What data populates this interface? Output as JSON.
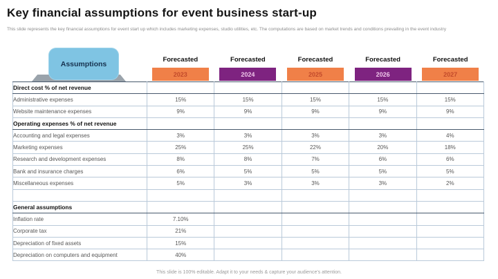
{
  "slide": {
    "title": "Key financial assumptions for event business start-up",
    "subtitle": "This slide represents the key financial assumptions for event start up which includes marketing expenses, studio utilities, etc. The computations are based on market trends and conditions prevailing in the event industry",
    "footer": "This slide is 100% editable. Adapt it to your needs & capture your audience's attention."
  },
  "colors": {
    "orange": "#F08048",
    "purple": "#7E2380",
    "assumptions_tab_blue": "#7FC4E3",
    "year_text_on_orange": "#C24A2B",
    "year_text_on_purple": "#EFC6E9",
    "table_border": "#B9C9D9",
    "section_border": "#46576B"
  },
  "header": {
    "assumptions_label": "Assumptions",
    "forecasted_label": "Forecasted",
    "years": [
      {
        "year": "2023",
        "color": "orange"
      },
      {
        "year": "2024",
        "color": "purple"
      },
      {
        "year": "2025",
        "color": "orange"
      },
      {
        "year": "2026",
        "color": "purple"
      },
      {
        "year": "2027",
        "color": "orange"
      }
    ]
  },
  "table": {
    "rows": [
      {
        "label": "Direct cost % of net revenue",
        "bold": true,
        "values": [
          "",
          "",
          "",
          "",
          ""
        ]
      },
      {
        "label": "Administrative expenses",
        "bold": false,
        "values": [
          "15%",
          "15%",
          "15%",
          "15%",
          "15%"
        ]
      },
      {
        "label": "Website maintenance expenses",
        "bold": false,
        "values": [
          "9%",
          "9%",
          "9%",
          "9%",
          "9%"
        ]
      },
      {
        "label": "Operating expenses % of net revenue",
        "bold": true,
        "values": [
          "",
          "",
          "",
          "",
          ""
        ]
      },
      {
        "label": "Accounting and legal expenses",
        "bold": false,
        "values": [
          "3%",
          "3%",
          "3%",
          "3%",
          "4%"
        ]
      },
      {
        "label": "Marketing expenses",
        "bold": false,
        "values": [
          "25%",
          "25%",
          "22%",
          "20%",
          "18%"
        ]
      },
      {
        "label": "Research and development expenses",
        "bold": false,
        "values": [
          "8%",
          "8%",
          "7%",
          "6%",
          "6%"
        ]
      },
      {
        "label": "Bank and insurance charges",
        "bold": false,
        "values": [
          "6%",
          "5%",
          "5%",
          "5%",
          "5%"
        ]
      },
      {
        "label": "Miscellaneous expenses",
        "bold": false,
        "values": [
          "5%",
          "3%",
          "3%",
          "3%",
          "2%"
        ]
      },
      {
        "label": "",
        "bold": false,
        "values": [
          "",
          "",
          "",
          "",
          ""
        ]
      },
      {
        "label": "General assumptions",
        "bold": true,
        "values": [
          "",
          "",
          "",
          "",
          ""
        ]
      },
      {
        "label": "Inflation rate",
        "bold": false,
        "values": [
          "7.10%",
          "",
          "",
          "",
          ""
        ]
      },
      {
        "label": "Corporate tax",
        "bold": false,
        "values": [
          "21%",
          "",
          "",
          "",
          ""
        ]
      },
      {
        "label": "Depreciation of fixed assets",
        "bold": false,
        "values": [
          "15%",
          "",
          "",
          "",
          ""
        ]
      },
      {
        "label": "Depreciation on computers and equipment",
        "bold": false,
        "values": [
          "40%",
          "",
          "",
          "",
          ""
        ]
      }
    ]
  }
}
